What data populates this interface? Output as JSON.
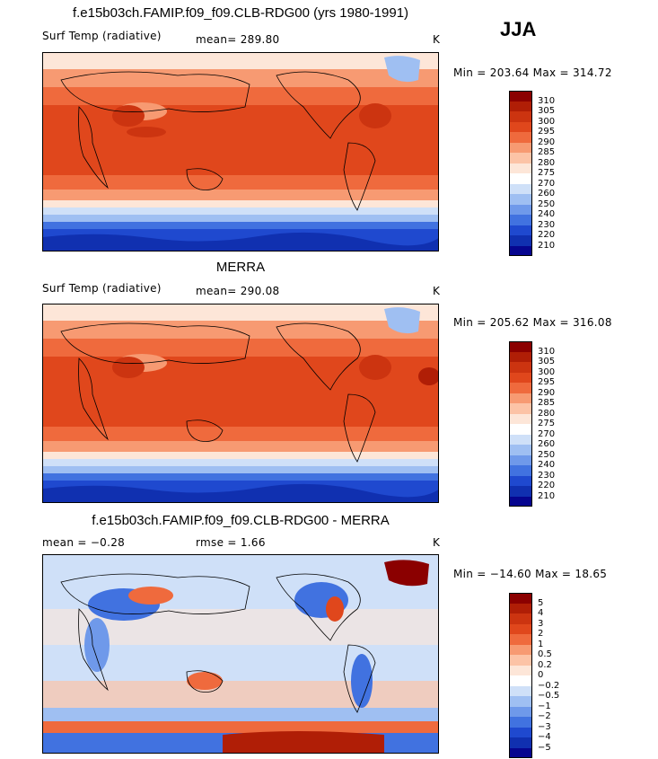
{
  "season": "JJA",
  "panels": [
    {
      "title": "f.e15b03ch.FAMIP.f09_f09.CLB-RDG00 (yrs 1980-1991)",
      "variable": "Surf Temp (radiative)",
      "stat": "mean=  289.80",
      "units": "K",
      "minmax": "Min = 203.64  Max = 314.72",
      "scale": "temp"
    },
    {
      "title": "MERRA",
      "variable": "Surf Temp (radiative)",
      "stat": "mean=  290.08",
      "units": "K",
      "minmax": "Min = 205.62  Max = 316.08",
      "scale": "temp"
    },
    {
      "title": "f.e15b03ch.FAMIP.f09_f09.CLB-RDG00 - MERRA",
      "variable": "mean =   −0.28",
      "stat": "rmse =     1.66",
      "units": "K",
      "minmax": "Min = −14.60  Max =   18.65",
      "scale": "diff"
    }
  ],
  "colorbars": {
    "temp": {
      "labels": [
        "310",
        "305",
        "300",
        "295",
        "290",
        "285",
        "280",
        "275",
        "270",
        "260",
        "250",
        "240",
        "230",
        "220",
        "210"
      ],
      "colors": [
        "#8b0000",
        "#b01e06",
        "#cc3410",
        "#e0471c",
        "#ef6a3d",
        "#f79a72",
        "#fcc3a6",
        "#fde6d8",
        "#ffffff",
        "#cfe0f8",
        "#9fbff2",
        "#6f99ea",
        "#4172e0",
        "#1f49cf",
        "#1030b0",
        "#06058f"
      ]
    },
    "diff": {
      "labels": [
        "5",
        "4",
        "3",
        "2",
        "1",
        "0.5",
        "0.2",
        "0",
        "−0.2",
        "−0.5",
        "−1",
        "−2",
        "−3",
        "−4",
        "−5"
      ],
      "colors": [
        "#8b0000",
        "#b01e06",
        "#cc3410",
        "#e0471c",
        "#ef6a3d",
        "#f79a72",
        "#fcc3a6",
        "#fde6d8",
        "#ffffff",
        "#cfe0f8",
        "#9fbff2",
        "#6f99ea",
        "#4172e0",
        "#1f49cf",
        "#1030b0",
        "#06058f"
      ]
    }
  }
}
